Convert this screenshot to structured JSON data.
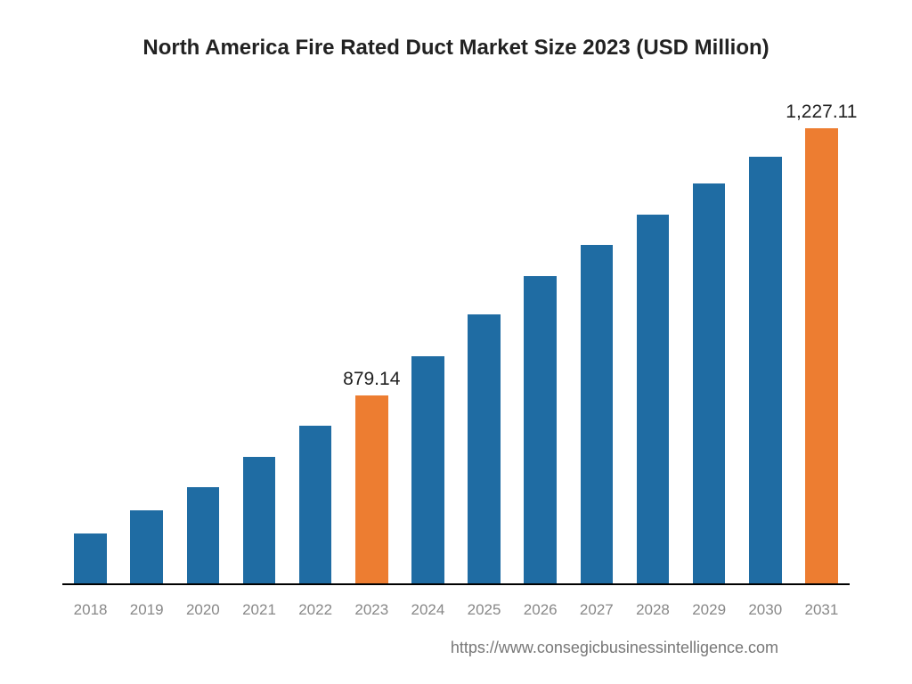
{
  "chart": {
    "type": "bar",
    "title": "North America Fire Rated Duct Market Size 2023 (USD Million)",
    "title_fontsize": 24,
    "title_weight": "600",
    "background_color": "#ffffff",
    "axis_color": "#000000",
    "categories": [
      "2018",
      "2019",
      "2020",
      "2021",
      "2022",
      "2023",
      "2024",
      "2025",
      "2026",
      "2027",
      "2028",
      "2029",
      "2030",
      "2031"
    ],
    "values": [
      700,
      730,
      760,
      800,
      840,
      879.14,
      930,
      985,
      1035,
      1075,
      1115,
      1155,
      1190,
      1227.11
    ],
    "ylim": [
      635,
      1280
    ],
    "bar_colors": [
      "#1f6ca3",
      "#1f6ca3",
      "#1f6ca3",
      "#1f6ca3",
      "#1f6ca3",
      "#ed7d31",
      "#1f6ca3",
      "#1f6ca3",
      "#1f6ca3",
      "#1f6ca3",
      "#1f6ca3",
      "#1f6ca3",
      "#1f6ca3",
      "#ed7d31"
    ],
    "bar_width": 0.58,
    "data_labels": [
      {
        "index": 5,
        "text": "879.14"
      },
      {
        "index": 13,
        "text": "1,227.11"
      }
    ],
    "data_label_fontsize": 21,
    "x_label_color": "#888888",
    "x_label_fontsize": 17
  },
  "footer": {
    "text": "https://www.consegicbusinessintelligence.com",
    "color": "#777777",
    "fontsize": 18
  }
}
